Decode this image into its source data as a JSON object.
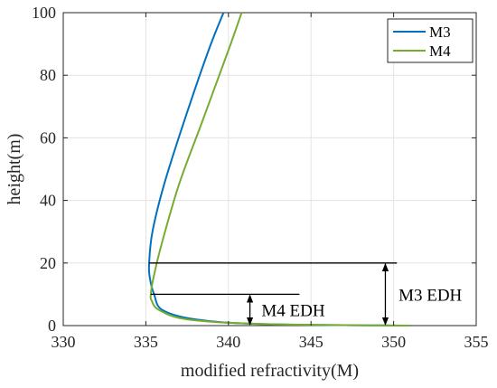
{
  "chart_data": {
    "type": "line",
    "xlabel": "modified refractivity(M)",
    "ylabel": "height(m)",
    "xlim": [
      330,
      355
    ],
    "ylim": [
      0,
      100
    ],
    "xticks": [
      "330",
      "335",
      "340",
      "345",
      "350",
      "355"
    ],
    "yticks": [
      "0",
      "20",
      "40",
      "60",
      "80",
      "100"
    ],
    "grid": true,
    "legend_position": "top-right",
    "series": [
      {
        "name": "M3",
        "color": "#0072BD",
        "x": [
          351,
          342,
          338,
          336,
          335.5,
          335.25,
          335.2,
          335.4,
          336.1,
          337.3,
          338.8,
          339.7
        ],
        "y": [
          0,
          0.5,
          2,
          5,
          10,
          15,
          20,
          30,
          45,
          65,
          88,
          100
        ]
      },
      {
        "name": "M4",
        "color": "#77AC30",
        "x": [
          351,
          342,
          337.5,
          335.8,
          335.35,
          335.3,
          335.45,
          335.9,
          337.0,
          338.4,
          340.0,
          340.8
        ],
        "y": [
          0,
          0.5,
          2,
          5,
          8,
          10,
          15,
          25,
          45,
          65,
          88,
          100
        ]
      }
    ],
    "annotations": [
      {
        "label": "M3 EDH",
        "height": 20,
        "line_x": [
          335.2,
          350.2
        ],
        "arrow_x": 349.5,
        "text_x": 350.3,
        "text_y": 10
      },
      {
        "label": "M4 EDH",
        "height": 10,
        "line_x": [
          335.3,
          344.3
        ],
        "arrow_x": 341.3,
        "text_x": 342.0,
        "text_y": 5
      }
    ]
  }
}
